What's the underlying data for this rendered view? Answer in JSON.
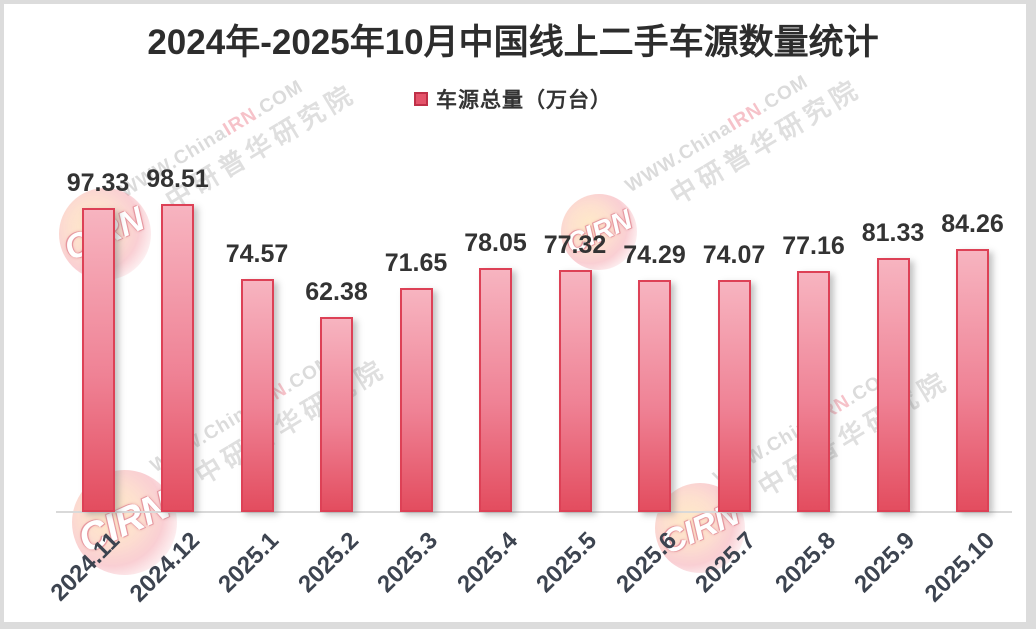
{
  "title": "2024年-2025年10月中国线上二手车源数量统计",
  "legend": {
    "label": "车源总量（万台）"
  },
  "chart_data": {
    "type": "bar",
    "title": "2024年-2025年10月中国线上二手车源数量统计",
    "series_name": "车源总量（万台）",
    "categories": [
      "2024.11",
      "2024.12",
      "2025.1",
      "2025.2",
      "2025.3",
      "2025.4",
      "2025.5",
      "2025.6",
      "2025.7",
      "2025.8",
      "2025.9",
      "2025.10"
    ],
    "values": [
      97.33,
      98.51,
      74.57,
      62.38,
      71.65,
      78.05,
      77.32,
      74.29,
      74.07,
      77.16,
      81.33,
      84.26
    ],
    "ylim": [
      0,
      105
    ],
    "grid": false,
    "legend_position": "top",
    "data_labels": true,
    "x_label_rotation_deg": 45
  },
  "watermark": {
    "site_prefix": "WWW.China",
    "site_highlight": "IRN",
    "site_suffix": ".COM",
    "org": "中研普华研究院",
    "logo": "CIRN"
  },
  "colors": {
    "bar_fill_top": "#f7b4c0",
    "bar_fill_mid": "#ef8295",
    "bar_fill_bottom": "#e34d5f",
    "bar_border": "#dd4156",
    "legend_marker_fill": "#e4536a",
    "legend_marker_border": "#bf3048",
    "title_text": "#2d2d2d",
    "value_label": "#333333",
    "axis_label": "#3d4450",
    "axis_line": "#d9d9d9",
    "frame": "#dcdcdc"
  }
}
